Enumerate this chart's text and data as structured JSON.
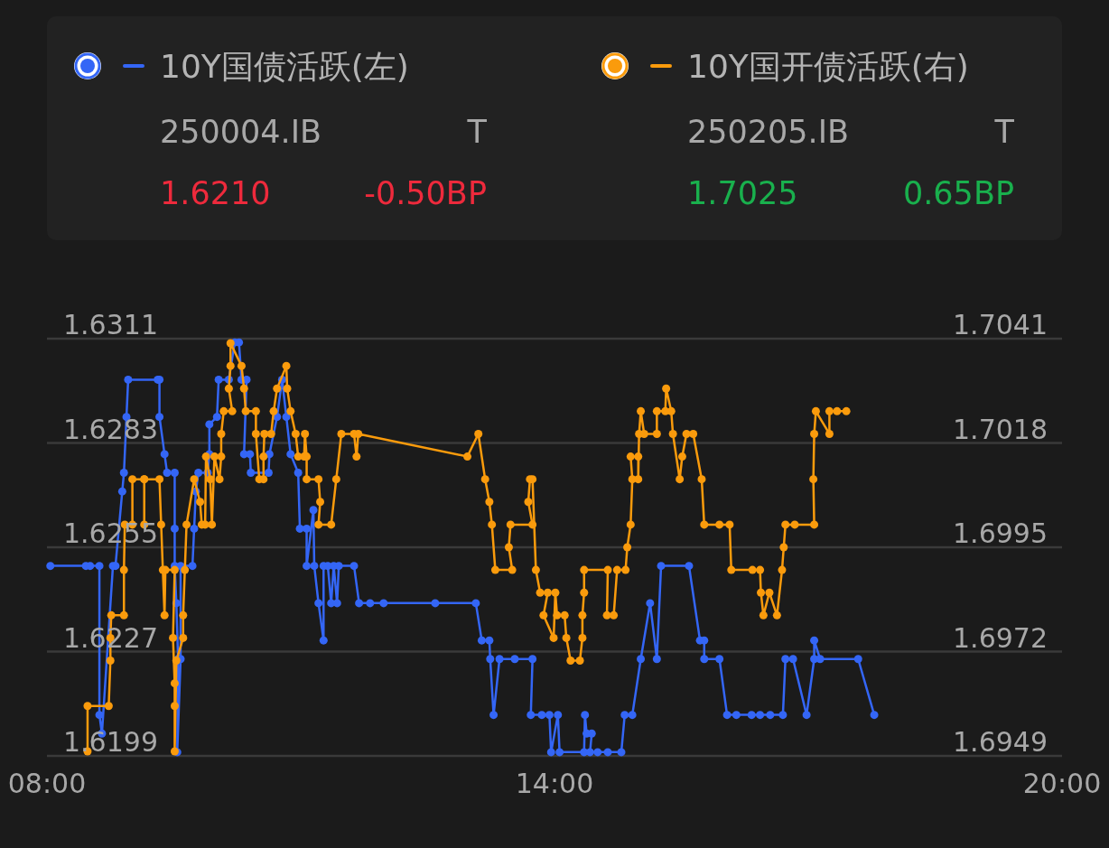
{
  "chart_data": {
    "type": "line",
    "xlim": [
      8,
      20
    ],
    "xticks": [
      {
        "value": 8,
        "label": "08:00"
      },
      {
        "value": 14,
        "label": "14:00"
      },
      {
        "value": 20,
        "label": "20:00"
      }
    ],
    "ylim": [
      1.6199,
      1.6311
    ],
    "yticks": [
      1.6199,
      1.6227,
      1.6255,
      1.6283,
      1.6311
    ],
    "y2lim": [
      1.6949,
      1.7041
    ],
    "y2ticks": [
      1.6949,
      1.6972,
      1.6995,
      1.7018,
      1.7041
    ],
    "grid": "y",
    "legend": "top",
    "marker": "circle",
    "line_style": "solid",
    "annotations": [
      "250004.IB",
      "T",
      "1.6210",
      "-0.50BP",
      "250205.IB",
      "T",
      "1.7025",
      "0.65BP"
    ],
    "series": [
      {
        "name": "10Y国债活跃(左)",
        "color": "#3466f6",
        "x": [
          8.04,
          8.46,
          8.51,
          8.62,
          8.62,
          8.65,
          8.78,
          8.81,
          8.89,
          8.91,
          8.94,
          8.96,
          9.31,
          9.33,
          9.33,
          9.39,
          9.42,
          9.51,
          9.51,
          9.51,
          9.53,
          9.55,
          9.54,
          9.58,
          9.58,
          9.72,
          9.74,
          9.76,
          9.79,
          9.9,
          9.92,
          9.92,
          10.01,
          10.03,
          10.15,
          10.22,
          10.27,
          10.3,
          10.36,
          10.33,
          10.4,
          10.41,
          10.62,
          10.63,
          10.72,
          10.78,
          10.83,
          10.88,
          10.97,
          10.99,
          11.07,
          11.07,
          11.15,
          11.16,
          11.21,
          11.27,
          11.27,
          11.32,
          11.36,
          11.39,
          11.43,
          11.45,
          11.63,
          11.69,
          11.82,
          11.98,
          12.59,
          13.07,
          13.14,
          13.23,
          13.24,
          13.28,
          13.35,
          13.53,
          13.74,
          13.72,
          13.85,
          13.94,
          13.96,
          14.04,
          14.06,
          14.35,
          14.36,
          14.38,
          14.44,
          14.42,
          14.51,
          14.63,
          14.79,
          14.83,
          14.92,
          15.02,
          15.13,
          15.21,
          15.26,
          15.59,
          15.72,
          15.77,
          15.77,
          15.95,
          16.04,
          16.15,
          16.33,
          16.43,
          16.55,
          16.7,
          16.73,
          16.82,
          16.98,
          17.07,
          17.07,
          17.14,
          17.59,
          17.78
        ],
        "values": [
          1.625,
          1.625,
          1.625,
          1.625,
          1.621,
          1.6205,
          1.625,
          1.625,
          1.627,
          1.6275,
          1.629,
          1.63,
          1.63,
          1.63,
          1.629,
          1.628,
          1.6275,
          1.6275,
          1.626,
          1.625,
          1.624,
          1.6225,
          1.62,
          1.6225,
          1.625,
          1.625,
          1.626,
          1.627,
          1.6275,
          1.6275,
          1.628,
          1.6288,
          1.629,
          1.63,
          1.63,
          1.631,
          1.631,
          1.63,
          1.63,
          1.628,
          1.628,
          1.6275,
          1.6275,
          1.628,
          1.629,
          1.63,
          1.629,
          1.628,
          1.6275,
          1.626,
          1.626,
          1.625,
          1.6265,
          1.625,
          1.624,
          1.623,
          1.625,
          1.625,
          1.624,
          1.625,
          1.624,
          1.625,
          1.625,
          1.624,
          1.624,
          1.624,
          1.624,
          1.624,
          1.623,
          1.623,
          1.6225,
          1.621,
          1.6225,
          1.6225,
          1.6225,
          1.621,
          1.621,
          1.621,
          1.62,
          1.621,
          1.62,
          1.62,
          1.621,
          1.6205,
          1.6205,
          1.62,
          1.62,
          1.62,
          1.62,
          1.621,
          1.621,
          1.6225,
          1.624,
          1.6225,
          1.625,
          1.625,
          1.623,
          1.623,
          1.6225,
          1.6225,
          1.621,
          1.621,
          1.621,
          1.621,
          1.621,
          1.621,
          1.6225,
          1.6225,
          1.621,
          1.6225,
          1.623,
          1.6225,
          1.6225,
          1.621
        ]
      },
      {
        "name": "10Y国开债活跃(右)",
        "color": "#fa9b0c",
        "axis": "y2",
        "x": [
          8.48,
          8.48,
          8.73,
          8.75,
          8.75,
          8.76,
          8.91,
          8.91,
          8.92,
          9.01,
          9.01,
          9.15,
          9.15,
          9.15,
          9.33,
          9.35,
          9.37,
          9.39,
          9.4,
          9.51,
          9.49,
          9.51,
          9.51,
          9.51,
          9.53,
          9.61,
          9.61,
          9.63,
          9.65,
          9.74,
          9.81,
          9.83,
          9.87,
          9.88,
          9.93,
          9.95,
          9.98,
          10.04,
          10.06,
          10.06,
          10.09,
          10.19,
          10.15,
          10.17,
          10.17,
          10.3,
          10.33,
          10.35,
          10.47,
          10.47,
          10.51,
          10.56,
          10.56,
          10.57,
          10.65,
          10.68,
          10.72,
          10.83,
          10.84,
          10.88,
          10.94,
          10.97,
          11.04,
          11.05,
          11.07,
          11.07,
          11.21,
          11.23,
          11.21,
          11.36,
          11.42,
          11.48,
          11.63,
          11.66,
          11.68,
          12.97,
          13.1,
          13.18,
          13.23,
          13.26,
          13.3,
          13.5,
          13.46,
          13.48,
          13.74,
          13.69,
          13.71,
          13.74,
          13.78,
          13.83,
          13.92,
          13.87,
          13.99,
          14.01,
          14.03,
          14.12,
          14.14,
          14.19,
          14.3,
          14.33,
          14.33,
          14.35,
          14.35,
          14.63,
          14.62,
          14.7,
          14.74,
          14.84,
          14.86,
          14.9,
          14.92,
          14.9,
          14.99,
          14.99,
          15.0,
          15.02,
          15.06,
          15.21,
          15.21,
          15.31,
          15.32,
          15.38,
          15.4,
          15.48,
          15.51,
          15.56,
          15.64,
          15.74,
          15.77,
          15.95,
          16.07,
          16.09,
          16.34,
          16.43,
          16.44,
          16.47,
          16.54,
          16.63,
          16.69,
          16.71,
          16.73,
          16.84,
          17.07,
          17.06,
          17.07,
          17.09,
          17.25,
          17.25,
          17.34,
          17.45
        ],
        "values": [
          1.695,
          1.696,
          1.696,
          1.697,
          1.6975,
          1.698,
          1.698,
          1.699,
          1.7,
          1.7,
          1.701,
          1.701,
          1.7,
          1.701,
          1.701,
          1.7,
          1.699,
          1.698,
          1.699,
          1.699,
          1.6975,
          1.6965,
          1.696,
          1.695,
          1.697,
          1.6975,
          1.698,
          1.699,
          1.7,
          1.701,
          1.7005,
          1.7,
          1.7,
          1.7015,
          1.701,
          1.7,
          1.7015,
          1.701,
          1.7015,
          1.702,
          1.7025,
          1.7025,
          1.703,
          1.7035,
          1.704,
          1.7035,
          1.703,
          1.7025,
          1.7025,
          1.702,
          1.701,
          1.701,
          1.7015,
          1.702,
          1.702,
          1.7025,
          1.703,
          1.7035,
          1.703,
          1.7025,
          1.702,
          1.7015,
          1.7015,
          1.702,
          1.7015,
          1.701,
          1.701,
          1.7005,
          1.7,
          1.7,
          1.701,
          1.702,
          1.702,
          1.7015,
          1.702,
          1.7015,
          1.702,
          1.701,
          1.7005,
          1.7,
          1.699,
          1.699,
          1.6995,
          1.7,
          1.7,
          1.7005,
          1.701,
          1.701,
          1.699,
          1.6985,
          1.6985,
          1.698,
          1.6975,
          1.6985,
          1.698,
          1.698,
          1.6975,
          1.697,
          1.697,
          1.6975,
          1.698,
          1.6985,
          1.699,
          1.699,
          1.698,
          1.698,
          1.699,
          1.699,
          1.6995,
          1.7,
          1.701,
          1.7015,
          1.7015,
          1.701,
          1.702,
          1.7025,
          1.702,
          1.702,
          1.7025,
          1.7025,
          1.703,
          1.7025,
          1.702,
          1.701,
          1.7015,
          1.702,
          1.702,
          1.701,
          1.7,
          1.7,
          1.7,
          1.699,
          1.699,
          1.699,
          1.6985,
          1.698,
          1.6985,
          1.698,
          1.699,
          1.6995,
          1.7,
          1.7,
          1.7,
          1.701,
          1.702,
          1.7025,
          1.702,
          1.7025,
          1.7025,
          1.7025
        ]
      }
    ]
  }
}
